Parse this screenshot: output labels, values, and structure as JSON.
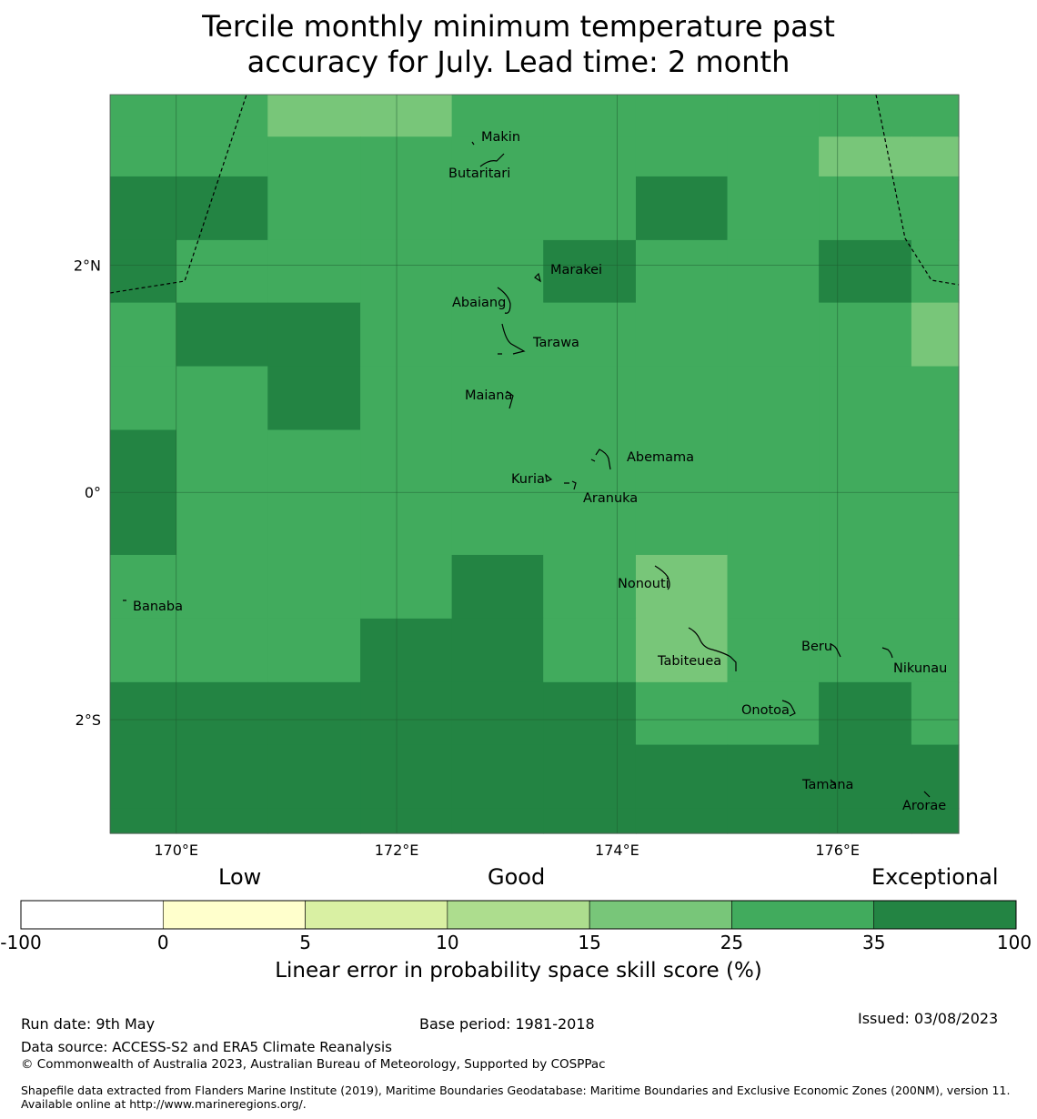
{
  "title": {
    "line1": "Tercile monthly minimum temperature past",
    "line2": "accuracy for July. Lead time: 2 month"
  },
  "map": {
    "lon_range": [
      169.4,
      177.1
    ],
    "lat_range": [
      -3.0,
      3.5
    ],
    "lon_ticks": [
      {
        "value": 170,
        "label": "170°E"
      },
      {
        "value": 172,
        "label": "172°E"
      },
      {
        "value": 174,
        "label": "174°E"
      },
      {
        "value": 176,
        "label": "176°E"
      }
    ],
    "lat_ticks": [
      {
        "value": 2,
        "label": "2°N"
      },
      {
        "value": 0,
        "label": "0°"
      },
      {
        "value": -2,
        "label": "2°S"
      }
    ],
    "grid_cells": {
      "cell_size_deg": 0.833,
      "lon_edges": [
        169.4,
        170.0,
        170.83,
        171.67,
        172.5,
        173.33,
        174.17,
        175.0,
        175.83,
        176.67,
        177.1
      ],
      "lat_edges": [
        3.5,
        3.13,
        2.78,
        2.22,
        1.67,
        1.11,
        0.55,
        0.0,
        -0.55,
        -1.11,
        -1.67,
        -2.22,
        -2.78,
        -3.0
      ],
      "category_rows": [
        [
          5,
          5,
          4,
          4,
          5,
          5,
          5,
          5,
          5,
          5
        ],
        [
          5,
          5,
          5,
          5,
          5,
          5,
          5,
          5,
          4,
          4
        ],
        [
          6,
          6,
          5,
          5,
          5,
          5,
          6,
          5,
          5,
          5
        ],
        [
          6,
          5,
          5,
          5,
          5,
          6,
          5,
          5,
          6,
          5
        ],
        [
          5,
          6,
          6,
          5,
          5,
          5,
          5,
          5,
          5,
          4
        ],
        [
          5,
          5,
          6,
          5,
          5,
          5,
          5,
          5,
          5,
          5
        ],
        [
          6,
          5,
          5,
          5,
          5,
          5,
          5,
          5,
          5,
          5
        ],
        [
          6,
          5,
          5,
          5,
          5,
          5,
          5,
          5,
          5,
          5
        ],
        [
          5,
          5,
          5,
          5,
          6,
          5,
          4,
          5,
          5,
          5
        ],
        [
          5,
          5,
          5,
          6,
          6,
          5,
          4,
          5,
          5,
          5
        ],
        [
          6,
          6,
          6,
          6,
          6,
          6,
          5,
          5,
          6,
          5
        ],
        [
          6,
          6,
          6,
          6,
          6,
          6,
          6,
          6,
          6,
          6
        ],
        [
          6,
          6,
          6,
          6,
          6,
          6,
          6,
          6,
          6,
          6
        ]
      ]
    },
    "islands": [
      {
        "name": "Makin",
        "lon": 172.95,
        "lat": 3.3
      },
      {
        "name": "Butaritari",
        "lon": 172.77,
        "lat": 3.15
      },
      {
        "name": "Marakei",
        "lon": 173.35,
        "lat": 2.0
      },
      {
        "name": "Abaiang",
        "lon": 172.9,
        "lat": 1.85
      },
      {
        "name": "Tarawa",
        "lon": 173.1,
        "lat": 1.45
      },
      {
        "name": "Maiana",
        "lon": 173.0,
        "lat": 0.95
      },
      {
        "name": "Abemama",
        "lon": 173.85,
        "lat": 0.4
      },
      {
        "name": "Kuria",
        "lon": 173.4,
        "lat": 0.22
      },
      {
        "name": "Aranuka",
        "lon": 173.6,
        "lat": 0.15
      },
      {
        "name": "Nonouti",
        "lon": 174.4,
        "lat": -0.65
      },
      {
        "name": "Banaba",
        "lon": 169.53,
        "lat": -0.87
      },
      {
        "name": "Tabiteuea",
        "lon": 174.8,
        "lat": -1.35
      },
      {
        "name": "Beru",
        "lon": 176.0,
        "lat": -1.35
      },
      {
        "name": "Nikunau",
        "lon": 176.45,
        "lat": -1.35
      },
      {
        "name": "Onotoa",
        "lon": 175.55,
        "lat": -1.8
      },
      {
        "name": "Tamana",
        "lon": 175.97,
        "lat": -2.5
      },
      {
        "name": "Arorae",
        "lon": 176.83,
        "lat": -2.65
      }
    ]
  },
  "colorbar": {
    "category_labels": {
      "low": "Low",
      "good": "Good",
      "exceptional": "Exceptional"
    },
    "bins": [
      {
        "from": -100,
        "to": 0,
        "color": "#ffffff"
      },
      {
        "from": 0,
        "to": 5,
        "color": "#ffffcc"
      },
      {
        "from": 5,
        "to": 10,
        "color": "#d9f0a3"
      },
      {
        "from": 10,
        "to": 15,
        "color": "#addd8e"
      },
      {
        "from": 15,
        "to": 25,
        "color": "#78c679"
      },
      {
        "from": 25,
        "to": 35,
        "color": "#41ab5d"
      },
      {
        "from": 35,
        "to": 100,
        "color": "#238443"
      }
    ],
    "tick_labels": [
      "-100",
      "0",
      "5",
      "10",
      "15",
      "25",
      "35",
      "100"
    ],
    "label": "Linear error in probability space skill score (%)"
  },
  "footer": {
    "run_date": "Run date: 9th May",
    "base_period": "Base period: 1981-2018",
    "issued": "Issued: 03/08/2023",
    "data_source": "Data source: ACCESS-S2 and ERA5 Climate Reanalysis",
    "copyright": "© Commonwealth of Australia 2023, Australian Bureau of Meteorology, Supported by COSPPac",
    "shapefile": "Shapefile data extracted from Flanders Marine Institute (2019), Maritime Boundaries Geodatabase: Maritime Boundaries and Exclusive Economic Zones (200NM), version 11. Available online at http://www.marineregions.org/."
  }
}
